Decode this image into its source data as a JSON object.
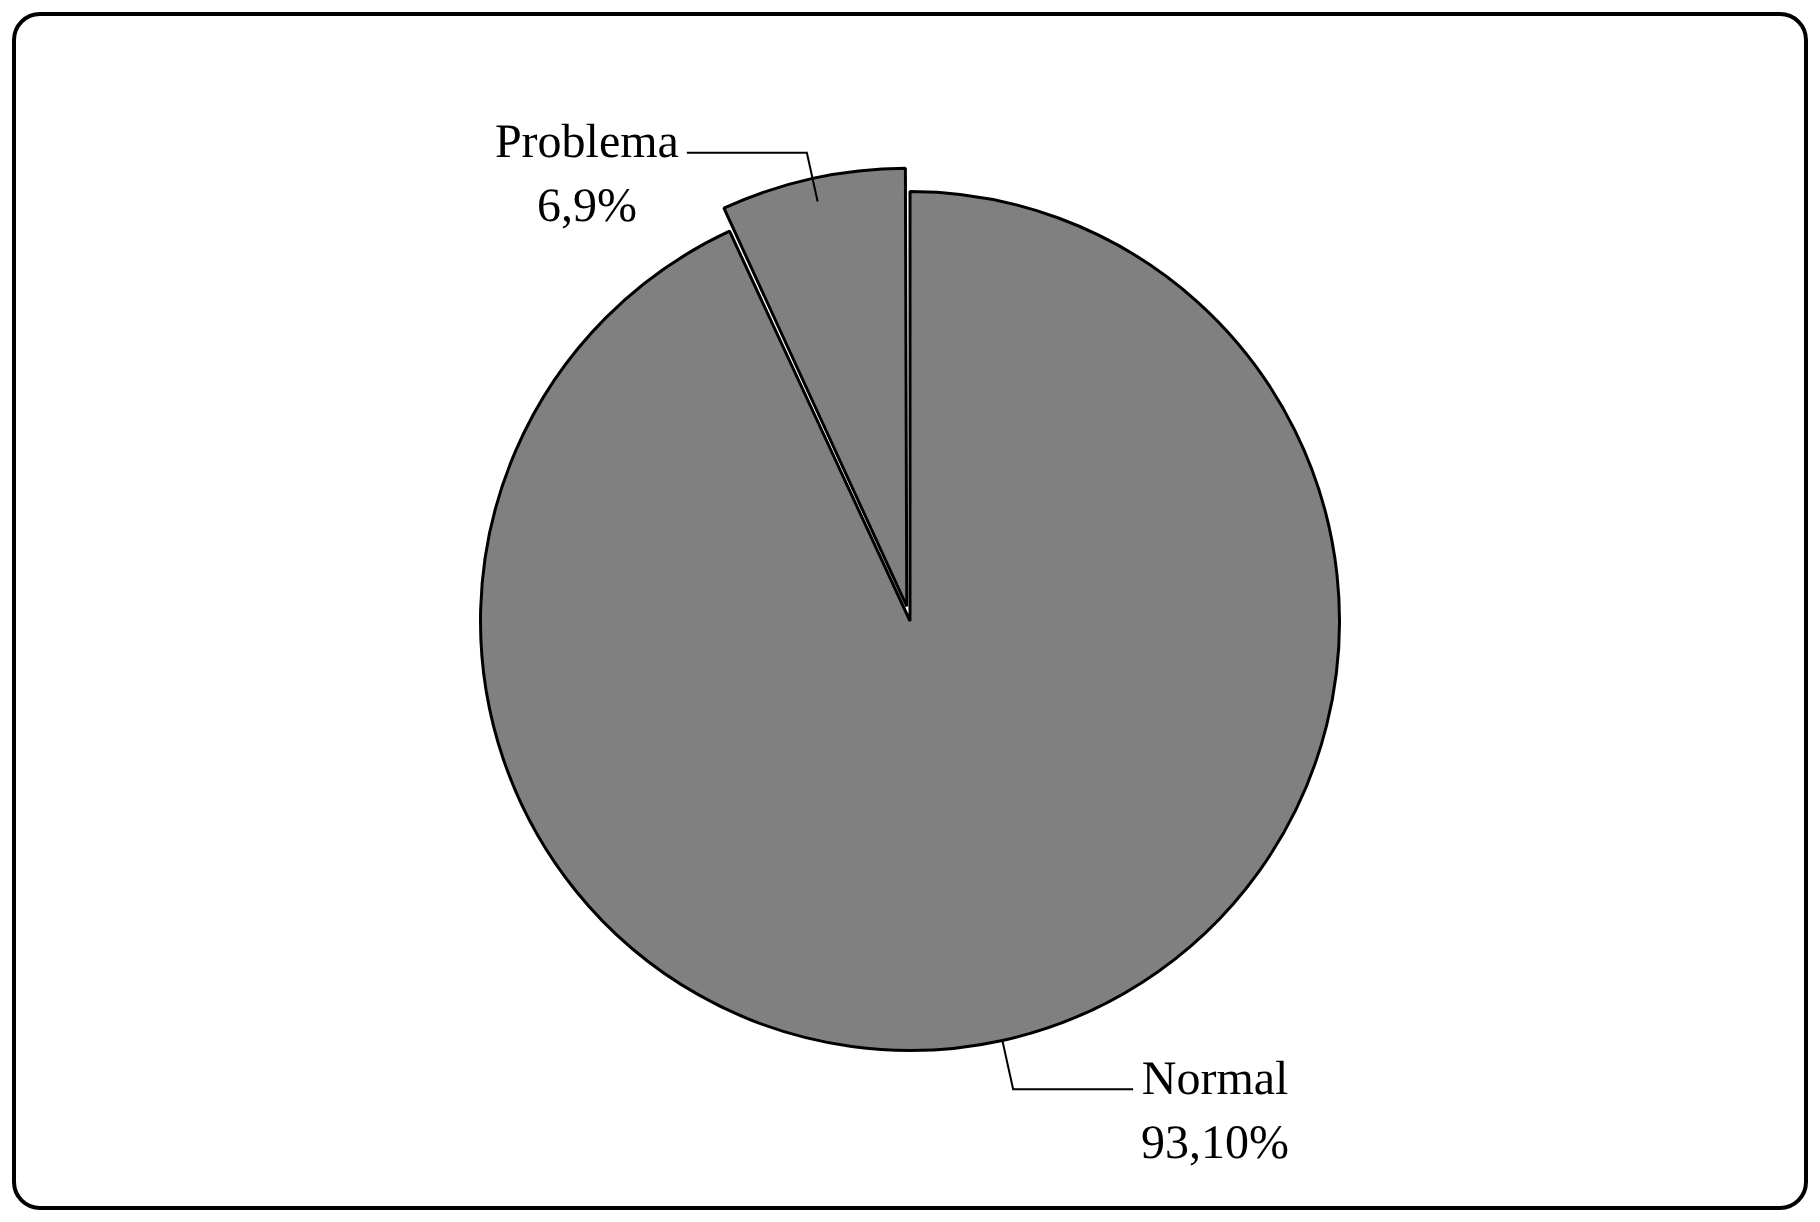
{
  "chart_data": {
    "type": "pie",
    "categories": [
      "Normal",
      "Problema"
    ],
    "values": [
      93.1,
      6.9
    ],
    "value_labels": [
      "93,10%",
      "6,9%"
    ],
    "colors": [
      "#808080",
      "#808080"
    ],
    "legend": false
  }
}
